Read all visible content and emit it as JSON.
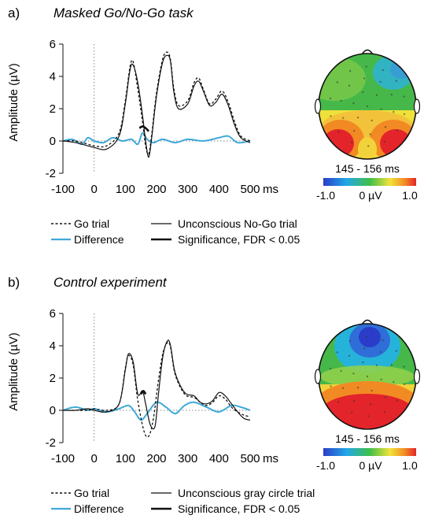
{
  "panels": [
    {
      "panel_label": "a)",
      "title": "Masked Go/No-Go task",
      "topomap_time": "145 - 156 ms",
      "legend": {
        "go": "Go trial",
        "nogo": "Unconscious No-Go trial",
        "diff": "Difference",
        "sig": "Significance, FDR < 0.05"
      }
    },
    {
      "panel_label": "b)",
      "title": "Control experiment",
      "topomap_time": "145 - 156 ms",
      "legend": {
        "go": "Go trial",
        "nogo": "Unconscious gray circle trial",
        "diff": "Difference",
        "sig": "Significance, FDR < 0.05"
      }
    }
  ],
  "colorbar": {
    "min_label": "-1.0",
    "mid_label": "0 µV",
    "max_label": "1.0"
  },
  "colors": {
    "difference": "#3fa9d8",
    "trace": "#111111",
    "zero_line": "#888888"
  },
  "chart_data": [
    {
      "type": "line",
      "ylabel": "Amplitude (µV)",
      "xunit": "ms",
      "xlim": [
        -100,
        500
      ],
      "ylim": [
        -2,
        6
      ],
      "xticks": [
        -100,
        0,
        100,
        200,
        300,
        400,
        500
      ],
      "yticks": [
        -2,
        0,
        2,
        4,
        6
      ],
      "series": [
        {
          "name": "Go trial",
          "style": "dashed",
          "x": [
            -100,
            -60,
            -20,
            0,
            40,
            80,
            100,
            115,
            125,
            140,
            155,
            165,
            175,
            185,
            200,
            220,
            235,
            245,
            255,
            270,
            300,
            320,
            335,
            350,
            370,
            390,
            410,
            430,
            450,
            470,
            500
          ],
          "y": [
            0,
            0,
            -0.2,
            -0.3,
            -0.3,
            0.5,
            2.5,
            4.6,
            4.9,
            3.2,
            1.2,
            -0.3,
            -0.8,
            0.5,
            3.0,
            5.1,
            5.5,
            5.0,
            3.3,
            2.2,
            2.5,
            3.6,
            3.9,
            3.2,
            2.3,
            2.6,
            3.1,
            2.4,
            1.2,
            0.3,
            0
          ]
        },
        {
          "name": "Unconscious No-Go trial",
          "style": "solid",
          "x": [
            -100,
            -60,
            -20,
            0,
            40,
            80,
            100,
            115,
            125,
            140,
            155,
            165,
            175,
            185,
            200,
            220,
            235,
            245,
            255,
            270,
            300,
            320,
            335,
            350,
            370,
            390,
            410,
            430,
            450,
            470,
            500
          ],
          "y": [
            0,
            -0.1,
            -0.3,
            -0.4,
            -0.5,
            0.3,
            2.3,
            4.4,
            4.7,
            3.6,
            1.6,
            0,
            -1.0,
            0.3,
            2.8,
            4.9,
            5.3,
            4.9,
            3.1,
            2.0,
            2.3,
            3.4,
            3.7,
            3.1,
            2.2,
            2.4,
            2.9,
            2.2,
            1.0,
            0.2,
            -0.1
          ]
        },
        {
          "name": "Difference",
          "style": "cyan",
          "x": [
            -100,
            -70,
            -40,
            -20,
            0,
            30,
            60,
            90,
            120,
            140,
            155,
            170,
            190,
            220,
            260,
            300,
            350,
            400,
            430,
            460,
            500
          ],
          "y": [
            0,
            0.1,
            -0.2,
            0.2,
            0,
            -0.1,
            0.2,
            0,
            0.1,
            -0.2,
            0.5,
            0.1,
            -0.1,
            0.1,
            -0.1,
            0.1,
            0,
            0.2,
            0.3,
            -0.1,
            0
          ]
        },
        {
          "name": "Significance, FDR < 0.05",
          "style": "solid-bold",
          "x": [
            145,
            155,
            165,
            175
          ],
          "y": [
            0.8,
            0.9,
            0.8,
            0.6
          ]
        }
      ]
    },
    {
      "type": "line",
      "ylabel": "Amplitude (µV)",
      "xunit": "ms",
      "xlim": [
        -100,
        500
      ],
      "ylim": [
        -2,
        6
      ],
      "xticks": [
        -100,
        0,
        100,
        200,
        300,
        400,
        500
      ],
      "yticks": [
        -2,
        0,
        2,
        4,
        6
      ],
      "series": [
        {
          "name": "Go trial",
          "style": "dashed",
          "x": [
            -100,
            -60,
            -20,
            0,
            40,
            80,
            100,
            110,
            125,
            140,
            160,
            175,
            190,
            205,
            220,
            235,
            245,
            260,
            290,
            320,
            340,
            360,
            380,
            400,
            420,
            440,
            460,
            480,
            500
          ],
          "y": [
            0,
            0,
            0,
            0.1,
            0,
            0.4,
            2.6,
            3.4,
            2.8,
            0.6,
            -1.3,
            -1.6,
            -0.5,
            1.7,
            3.5,
            4.2,
            3.9,
            2.2,
            1.0,
            0.8,
            0.5,
            0.3,
            0.5,
            0.9,
            0.7,
            0.2,
            -0.1,
            -0.3,
            -0.4
          ]
        },
        {
          "name": "Unconscious gray circle trial",
          "style": "solid",
          "x": [
            -100,
            -60,
            -20,
            0,
            40,
            80,
            100,
            110,
            125,
            140,
            155,
            165,
            180,
            195,
            205,
            220,
            235,
            245,
            260,
            290,
            320,
            340,
            360,
            380,
            400,
            420,
            440,
            460,
            480,
            500
          ],
          "y": [
            0,
            0,
            0.1,
            0,
            -0.1,
            0.4,
            2.5,
            3.5,
            3.0,
            1.0,
            1.2,
            0.4,
            -0.9,
            -1.0,
            0.8,
            3.3,
            4.3,
            4.0,
            2.3,
            1.1,
            0.9,
            0.5,
            0.4,
            0.6,
            1.1,
            0.9,
            0.4,
            -0.1,
            -0.5,
            -0.6
          ]
        },
        {
          "name": "Difference",
          "style": "cyan",
          "x": [
            -100,
            -60,
            -20,
            0,
            40,
            80,
            110,
            130,
            150,
            170,
            200,
            230,
            260,
            290,
            320,
            360,
            400,
            440,
            470,
            500
          ],
          "y": [
            0,
            0.2,
            0,
            0.1,
            -0.1,
            0.1,
            0.3,
            -0.1,
            -0.6,
            -0.2,
            0.5,
            0.2,
            -0.2,
            0.3,
            0.5,
            0.2,
            -0.1,
            0.3,
            0.2,
            0
          ]
        },
        {
          "name": "Significance, FDR < 0.05",
          "style": "solid-bold",
          "x": [
            150,
            158,
            165
          ],
          "y": [
            1.0,
            1.2,
            1.0
          ]
        }
      ]
    }
  ]
}
